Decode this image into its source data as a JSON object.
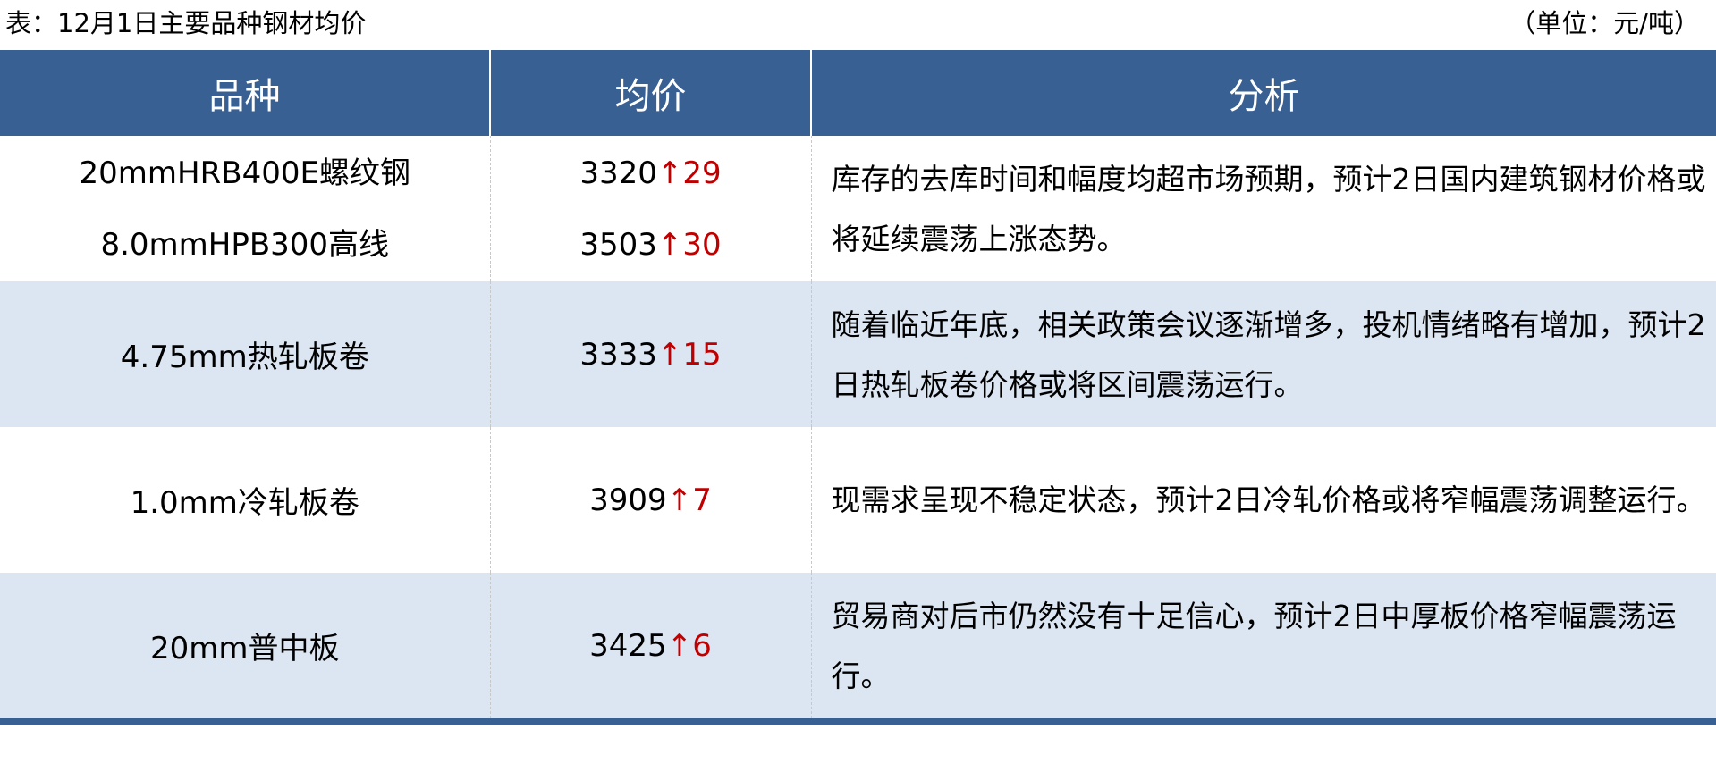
{
  "caption": "表：12月1日主要品种钢材均价",
  "unit": "（单位：元/吨）",
  "headers": [
    "品种",
    "均价",
    "分析"
  ],
  "colors": {
    "header": "#386093",
    "alt_row": "#dce6f2",
    "up": "#c00000"
  },
  "rows": [
    {
      "items": [
        {
          "name": "20mmHRB400E螺纹钢",
          "price": "3320",
          "arrow": "↑",
          "change": "29"
        },
        {
          "name": "8.0mmHPB300高线",
          "price": "3503",
          "arrow": "↑",
          "change": "30"
        }
      ],
      "analysis": "库存的去库时间和幅度均超市场预期，预计2日国内建筑钢材价格或将延续震荡上涨态势。"
    },
    {
      "items": [
        {
          "name": "4.75mm热轧板卷",
          "price": "3333",
          "arrow": "↑",
          "change": "15"
        }
      ],
      "analysis": "随着临近年底，相关政策会议逐渐增多，投机情绪略有增加，预计2日热轧板卷价格或将区间震荡运行。"
    },
    {
      "items": [
        {
          "name": "1.0mm冷轧板卷",
          "price": "3909",
          "arrow": "↑",
          "change": "7"
        }
      ],
      "analysis": "现需求呈现不稳定状态，预计2日冷轧价格或将窄幅震荡调整运行。"
    },
    {
      "items": [
        {
          "name": "20mm普中板",
          "price": "3425",
          "arrow": "↑",
          "change": "6"
        }
      ],
      "analysis": "贸易商对后市仍然没有十足信心，预计2日中厚板价格窄幅震荡运行。"
    }
  ]
}
